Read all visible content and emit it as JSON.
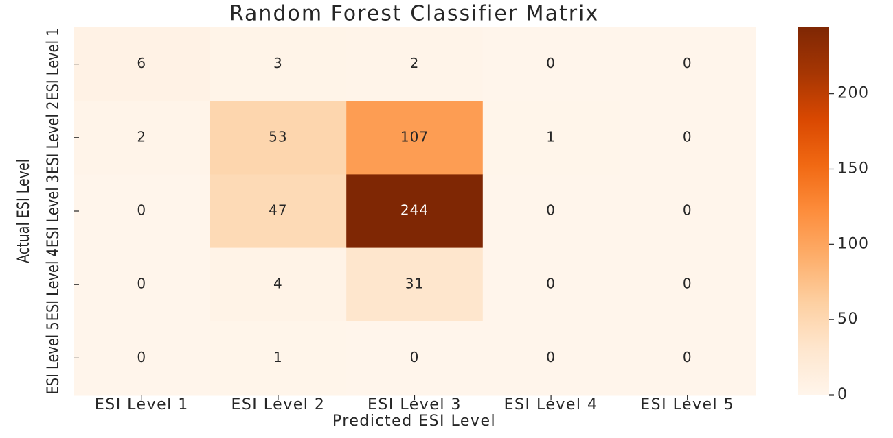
{
  "chart_data": {
    "type": "heatmap",
    "title": "Random Forest Classifier Matrix",
    "xlabel": "Predicted ESI Level",
    "ylabel": "Actual ESI Level",
    "x": [
      "ESI Level 1",
      "ESI Level 2",
      "ESI Level 3",
      "ESI Level 4",
      "ESI Level 5"
    ],
    "y": [
      "ESI Level 1",
      "ESI Level 2",
      "ESI Level 3",
      "ESI Level 4",
      "ESI Level 5"
    ],
    "values": [
      [
        6,
        3,
        2,
        0,
        0
      ],
      [
        2,
        53,
        107,
        1,
        0
      ],
      [
        0,
        47,
        244,
        0,
        0
      ],
      [
        0,
        4,
        31,
        0,
        0
      ],
      [
        0,
        1,
        0,
        0,
        0
      ]
    ],
    "zlim": [
      0,
      244
    ],
    "zticks": [
      0,
      50,
      100,
      150,
      200
    ],
    "colormap": [
      "#fff5eb",
      "#fee6ce",
      "#fdd0a2",
      "#fdae6b",
      "#fd8d3c",
      "#f16913",
      "#d94801",
      "#a63603",
      "#7f2704"
    ]
  }
}
